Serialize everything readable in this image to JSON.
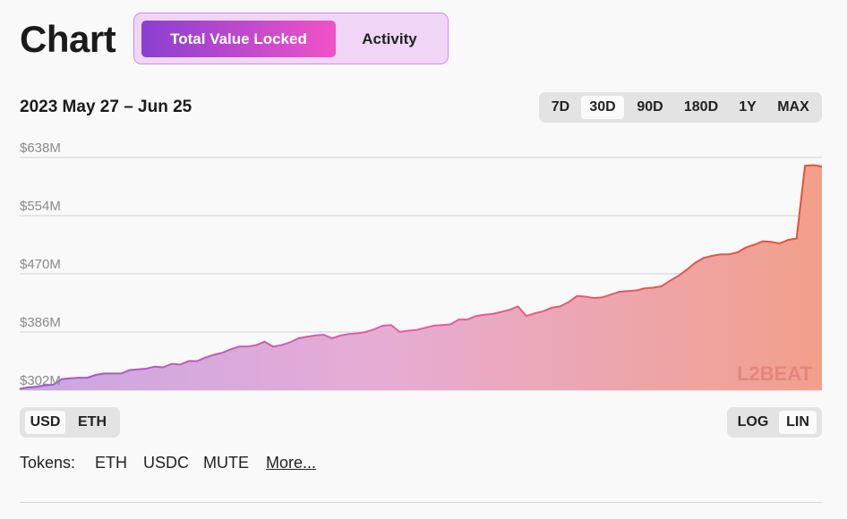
{
  "page_title": "Chart",
  "metric_toggle": {
    "active": "Total Value Locked",
    "inactive": "Activity"
  },
  "date_range": "2023 May 27 – Jun 25",
  "range_buttons": [
    "7D",
    "30D",
    "90D",
    "180D",
    "1Y",
    "MAX"
  ],
  "selected_range": "30D",
  "currency_buttons": [
    "USD",
    "ETH"
  ],
  "selected_currency": "USD",
  "scale_buttons": [
    "LOG",
    "LIN"
  ],
  "selected_scale": "LIN",
  "tokens": {
    "label": "Tokens:",
    "items": [
      "ETH",
      "USDC",
      "MUTE"
    ],
    "more": "More..."
  },
  "watermark": "L2BEAT",
  "colors": {
    "gradient_start": "#9b59d0",
    "gradient_mid": "#e8609e",
    "gradient_end": "#ec5a32",
    "accent_purple": "#8a3fd1",
    "accent_pink": "#f052c8"
  },
  "chart_data": {
    "type": "area",
    "title": "",
    "xlabel": "",
    "ylabel": "",
    "ylim": [
      302,
      638
    ],
    "yticks": [
      "$638M",
      "$554M",
      "$470M",
      "$386M",
      "$302M"
    ],
    "ytick_values": [
      638,
      554,
      470,
      386,
      302
    ],
    "grid": true,
    "series": [
      {
        "name": "",
        "unit": "$M",
        "values": [
          304,
          306,
          307,
          309,
          310,
          318,
          319,
          320,
          320,
          324,
          326,
          326,
          326,
          331,
          332,
          333,
          336,
          335,
          340,
          339,
          344,
          344,
          349,
          353,
          356,
          361,
          365,
          365,
          367,
          372,
          365,
          367,
          371,
          377,
          379,
          381,
          382,
          377,
          381,
          383,
          384,
          386,
          390,
          395,
          396,
          386,
          388,
          389,
          392,
          395,
          396,
          397,
          404,
          404,
          409,
          411,
          412,
          415,
          418,
          423,
          409,
          413,
          416,
          421,
          423,
          429,
          438,
          437,
          435,
          436,
          440,
          444,
          445,
          446,
          449,
          450,
          452,
          460,
          467,
          476,
          486,
          493,
          496,
          498,
          498,
          501,
          508,
          512,
          517,
          516,
          514,
          519,
          521,
          626,
          627,
          625
        ]
      }
    ]
  }
}
